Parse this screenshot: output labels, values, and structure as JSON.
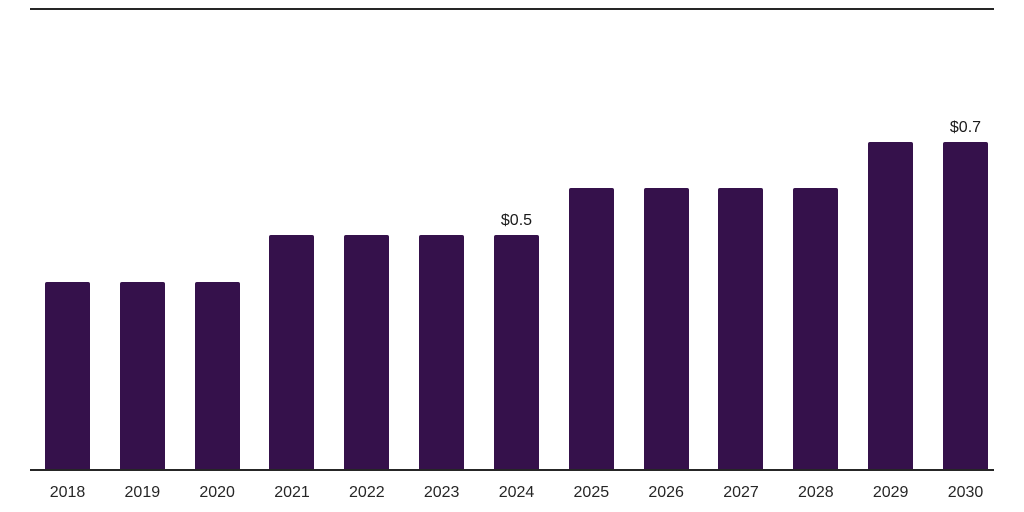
{
  "chart": {
    "background_color": "#ffffff",
    "bar_color": "#35114B",
    "axis_color": "#262626",
    "top_rule_color": "#262626",
    "text_color": "#1a1a1a"
  },
  "chart_data": {
    "type": "bar",
    "categories": [
      "2018",
      "2019",
      "2020",
      "2021",
      "2022",
      "2023",
      "2024",
      "2025",
      "2026",
      "2027",
      "2028",
      "2029",
      "2030"
    ],
    "values": [
      0.4,
      0.4,
      0.4,
      0.5,
      0.5,
      0.5,
      0.5,
      0.6,
      0.6,
      0.6,
      0.6,
      0.7,
      0.7
    ],
    "data_labels": [
      "",
      "",
      "",
      "",
      "",
      "",
      "$0.5",
      "",
      "",
      "",
      "",
      "",
      "$0.7"
    ],
    "title": "",
    "xlabel": "",
    "ylabel": "",
    "ylim": [
      0,
      0.78
    ],
    "grid": false,
    "legend": false,
    "axis_lines_visible": [
      "top",
      "bottom"
    ]
  }
}
